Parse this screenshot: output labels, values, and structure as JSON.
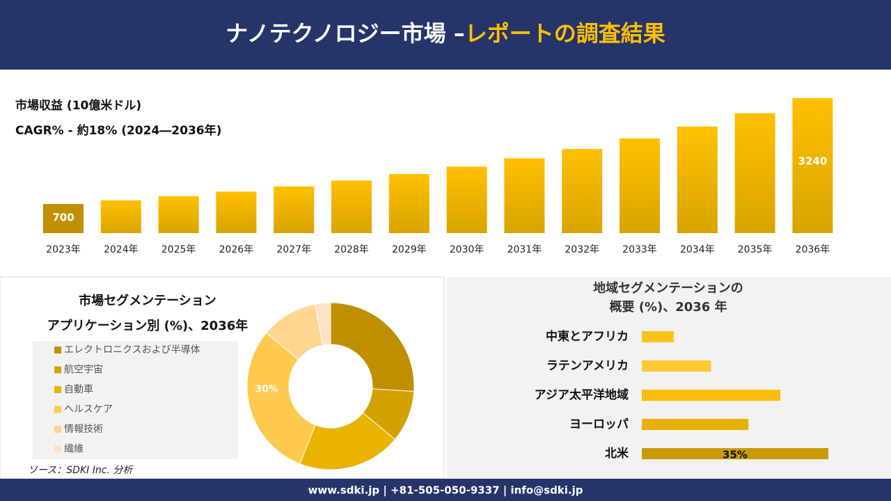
{
  "header": {
    "title": "ナノテクノロジー市場 –",
    "title_highlight": "レポートの調査結果"
  },
  "chart_data": [
    {
      "type": "bar",
      "title": "市場収益 (10億米ドル)",
      "subtitle": "CAGR% - 約18% (2024―2036年)",
      "categories": [
        "2023年",
        "2024年",
        "2025年",
        "2026年",
        "2027年",
        "2028年",
        "2029年",
        "2030年",
        "2031年",
        "2032年",
        "2033年",
        "2034年",
        "2035年",
        "2036年"
      ],
      "values": [
        700,
        788,
        886,
        997,
        1121,
        1262,
        1419,
        1597,
        1796,
        2021,
        2273,
        2558,
        2877,
        3240
      ],
      "value_labels": [
        "700",
        null,
        null,
        null,
        null,
        null,
        null,
        null,
        null,
        null,
        null,
        null,
        null,
        "3240"
      ],
      "color": "#f2b600"
    },
    {
      "type": "donut",
      "title": "市場セグメンテーション",
      "subtitle": "アプリケーション別 (%)、2036年",
      "categories": [
        "エレクトロニクスおよび半導体",
        "航空宇宙",
        "自動車",
        "ヘルスケア",
        "情報技術",
        "繊維"
      ],
      "values": [
        26,
        10,
        20,
        30,
        11,
        3
      ],
      "value_labels": [
        null,
        null,
        null,
        "30%",
        null,
        null
      ],
      "colors": [
        "#bf8f00",
        "#d4a200",
        "#e9b300",
        "#ffc94d",
        "#ffd68f",
        "#fde3c4"
      ]
    },
    {
      "type": "hbar",
      "title": "地域セグメンテーションの",
      "subtitle": "概要 (%)、2036 年",
      "categories": [
        "中東とアフリカ",
        "ラテンアメリカ",
        "アジア太平洋地域",
        "ヨーロッパ",
        "北米"
      ],
      "values": [
        6,
        13,
        26,
        20,
        35
      ],
      "value_labels": [
        null,
        null,
        null,
        null,
        "35%"
      ],
      "colors": [
        "#fbc21a",
        "#fdc832",
        "#fbbe08",
        "#e8b000",
        "#c99a06"
      ]
    }
  ],
  "source": "ソース：SDKI Inc. 分析",
  "footer": "www.sdki.jp | +81-505-050-9337 | info@sdki.jp"
}
